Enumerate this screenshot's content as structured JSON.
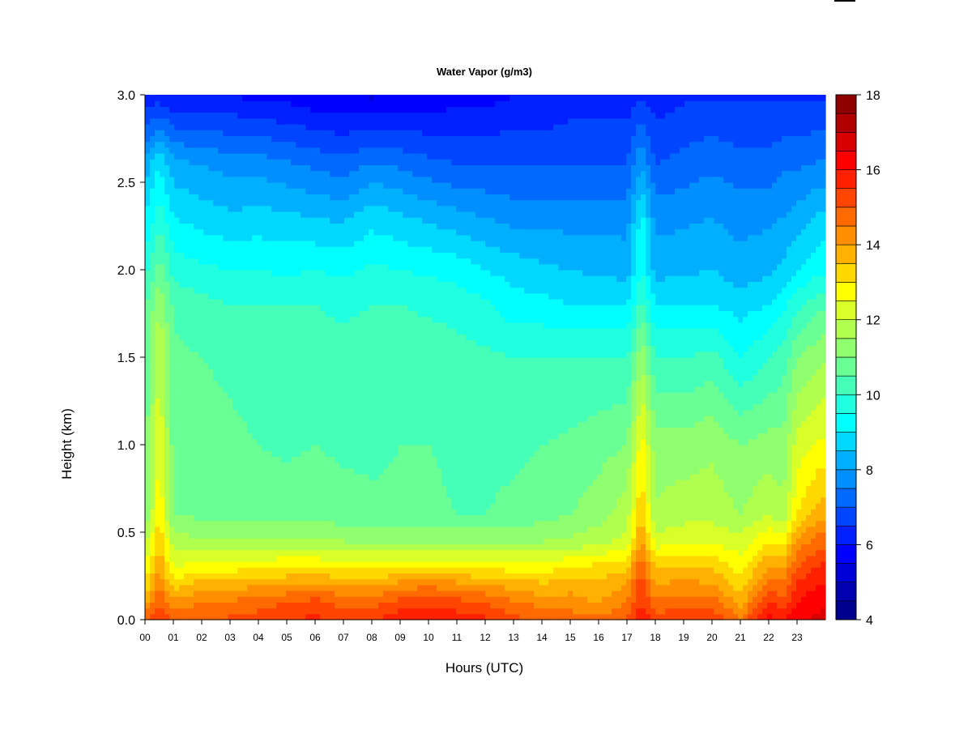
{
  "chart_data": {
    "type": "heatmap",
    "title": "Water Vapor (g/m3)",
    "xlabel": "Hours (UTC)",
    "ylabel": "Height (km)",
    "xlim": [
      0,
      24
    ],
    "ylim": [
      0.0,
      3.0
    ],
    "x_ticks": [
      "00",
      "01",
      "02",
      "03",
      "04",
      "05",
      "06",
      "07",
      "08",
      "09",
      "10",
      "11",
      "12",
      "13",
      "14",
      "15",
      "16",
      "17",
      "18",
      "19",
      "20",
      "21",
      "22",
      "23"
    ],
    "y_ticks": [
      "0.0",
      "0.5",
      "1.0",
      "1.5",
      "2.0",
      "2.5",
      "3.0"
    ],
    "colorbar": {
      "min": 4,
      "max": 18,
      "step": 0.5,
      "tick_labels": [
        "4",
        "6",
        "8",
        "10",
        "12",
        "14",
        "16",
        "18"
      ],
      "colors": [
        "#00008f",
        "#0000b0",
        "#0000d8",
        "#0000ff",
        "#0020ff",
        "#0045ff",
        "#006aff",
        "#008fff",
        "#00b0ff",
        "#00d8ff",
        "#00ffff",
        "#20ffdf",
        "#45ffb8",
        "#6aff95",
        "#8fff70",
        "#b0ff4f",
        "#d8ff27",
        "#ffff00",
        "#ffd800",
        "#ffb000",
        "#ff8f00",
        "#ff6a00",
        "#ff4500",
        "#ff2000",
        "#ff0000",
        "#d80000",
        "#b00000",
        "#8f0000"
      ]
    },
    "heights_km": [
      0.0,
      0.1,
      0.2,
      0.3,
      0.45,
      0.6,
      1.0,
      1.5,
      1.8,
      2.0,
      2.3,
      2.6,
      3.0
    ],
    "hours": [
      0,
      0.5,
      1,
      2,
      3,
      4,
      5,
      6,
      7,
      8,
      9,
      10,
      11,
      12,
      13,
      14,
      15,
      16,
      17,
      17.5,
      18,
      19,
      20,
      21,
      22,
      22.5,
      23,
      23.8
    ],
    "values": [
      [
        15.0,
        13.8,
        13.0,
        12.5,
        11.8,
        11.0,
        10.8,
        10.6,
        10.4,
        9.8,
        9.0,
        8.2,
        6.0
      ],
      [
        15.5,
        15.0,
        14.5,
        14.0,
        13.5,
        13.0,
        12.5,
        12.0,
        11.5,
        10.8,
        9.8,
        9.0,
        6.2
      ],
      [
        15.0,
        14.2,
        13.2,
        12.5,
        11.8,
        11.0,
        10.8,
        10.6,
        10.4,
        9.8,
        9.0,
        8.2,
        6.0
      ],
      [
        15.0,
        14.5,
        13.8,
        12.8,
        11.5,
        10.9,
        10.7,
        10.5,
        10.2,
        9.6,
        8.8,
        8.0,
        6.0
      ],
      [
        15.1,
        14.6,
        13.8,
        12.8,
        11.5,
        10.9,
        10.6,
        10.4,
        10.0,
        9.5,
        8.6,
        7.8,
        6.0
      ],
      [
        15.2,
        14.8,
        13.9,
        12.9,
        11.5,
        10.8,
        10.5,
        10.3,
        10.0,
        9.5,
        8.7,
        7.8,
        5.8
      ],
      [
        15.5,
        15.0,
        14.0,
        13.0,
        11.6,
        10.8,
        10.4,
        10.2,
        10.0,
        9.4,
        8.6,
        7.6,
        5.8
      ],
      [
        15.6,
        15.2,
        14.2,
        13.0,
        11.6,
        10.8,
        10.5,
        10.2,
        10.0,
        9.5,
        8.5,
        7.4,
        5.6
      ],
      [
        15.4,
        14.8,
        14.0,
        12.8,
        11.5,
        10.7,
        10.4,
        10.2,
        9.9,
        9.4,
        8.4,
        7.2,
        5.6
      ],
      [
        15.5,
        14.8,
        14.0,
        12.8,
        11.4,
        10.6,
        10.4,
        10.3,
        10.0,
        9.6,
        8.8,
        7.6,
        5.4
      ],
      [
        15.8,
        15.2,
        14.2,
        13.0,
        11.4,
        10.6,
        10.5,
        10.4,
        10.0,
        9.5,
        8.6,
        7.4,
        5.6
      ],
      [
        16.0,
        15.4,
        14.4,
        13.0,
        11.4,
        10.6,
        10.5,
        10.3,
        9.9,
        9.4,
        8.4,
        7.2,
        5.6
      ],
      [
        15.8,
        15.2,
        14.2,
        12.9,
        11.4,
        10.5,
        10.4,
        10.2,
        9.8,
        9.3,
        8.2,
        7.0,
        5.8
      ],
      [
        15.6,
        15.0,
        14.0,
        12.9,
        11.4,
        10.5,
        10.4,
        10.1,
        9.6,
        9.0,
        8.0,
        7.0,
        5.8
      ],
      [
        15.2,
        14.6,
        13.8,
        12.8,
        11.4,
        10.6,
        10.4,
        10.0,
        9.2,
        8.8,
        7.8,
        7.0,
        6.0
      ],
      [
        14.8,
        14.3,
        13.6,
        12.8,
        11.5,
        10.8,
        10.5,
        10.0,
        9.2,
        8.6,
        7.8,
        7.0,
        6.0
      ],
      [
        14.8,
        14.2,
        13.8,
        13.0,
        11.6,
        11.0,
        10.6,
        10.0,
        9.0,
        8.5,
        7.8,
        7.0,
        6.2
      ],
      [
        14.6,
        14.0,
        13.6,
        13.2,
        11.8,
        11.3,
        10.8,
        10.0,
        9.0,
        8.4,
        7.8,
        7.0,
        6.2
      ],
      [
        15.0,
        14.5,
        14.0,
        13.4,
        12.2,
        11.8,
        11.0,
        10.0,
        9.0,
        8.3,
        7.8,
        7.0,
        6.2
      ],
      [
        16.0,
        15.5,
        15.4,
        15.0,
        14.2,
        13.5,
        12.8,
        11.5,
        10.2,
        9.5,
        9.2,
        8.0,
        6.4
      ],
      [
        15.2,
        14.6,
        14.0,
        13.4,
        12.2,
        11.6,
        11.2,
        10.0,
        9.0,
        8.3,
        7.8,
        7.0,
        6.2
      ],
      [
        15.5,
        14.8,
        14.2,
        13.6,
        12.4,
        11.8,
        11.2,
        10.0,
        9.0,
        8.4,
        7.9,
        7.2,
        6.4
      ],
      [
        15.4,
        14.8,
        14.0,
        13.5,
        12.4,
        11.8,
        11.4,
        10.2,
        9.0,
        8.5,
        8.0,
        7.4,
        6.4
      ],
      [
        14.6,
        13.8,
        13.2,
        12.8,
        12.2,
        11.5,
        11.0,
        9.5,
        8.8,
        8.2,
        7.8,
        7.2,
        6.4
      ],
      [
        16.2,
        15.5,
        14.8,
        14.0,
        13.0,
        12.0,
        11.2,
        10.0,
        9.0,
        8.4,
        7.9,
        7.2,
        6.4
      ],
      [
        16.0,
        15.2,
        14.6,
        14.0,
        12.8,
        11.6,
        11.2,
        10.2,
        9.4,
        8.6,
        8.0,
        7.4,
        6.4
      ],
      [
        16.4,
        16.0,
        15.6,
        15.0,
        14.2,
        13.0,
        12.2,
        11.0,
        9.8,
        9.0,
        8.2,
        7.4,
        6.4
      ],
      [
        16.6,
        16.4,
        16.0,
        15.6,
        14.8,
        13.8,
        12.6,
        11.4,
        10.4,
        9.4,
        8.6,
        7.6,
        6.4
      ]
    ]
  }
}
